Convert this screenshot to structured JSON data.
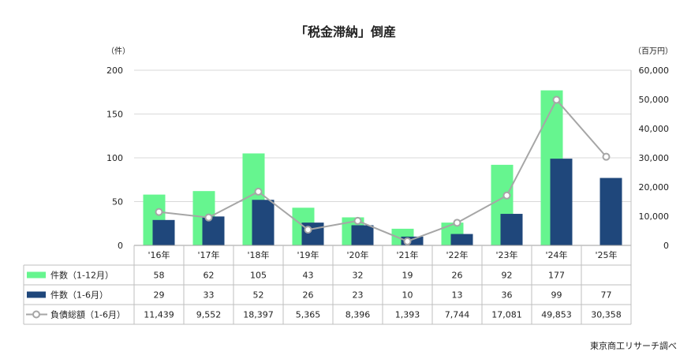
{
  "source": "東京商工リサーチ調べ",
  "colors": {
    "full_year_bar": "#66f58f",
    "half_year_bar": "#1f477b",
    "debt_line": "#a6a6a6",
    "grid": "#d9d9d9",
    "table_border": "#bfbfbf"
  },
  "chart_data": {
    "type": "bar",
    "title": "「税金滞納」倒産",
    "categories": [
      "'16年",
      "'17年",
      "'18年",
      "'19年",
      "'20年",
      "'21年",
      "'22年",
      "'23年",
      "'24年",
      "'25年"
    ],
    "y_left": {
      "unit": "（件）",
      "ylim": [
        0,
        200
      ],
      "ticks": [
        "0",
        "50",
        "100",
        "150",
        "200"
      ]
    },
    "y_right": {
      "unit": "（百万円）",
      "ylim": [
        0,
        60000
      ],
      "ticks": [
        "0",
        "10,000",
        "20,000",
        "30,000",
        "40,000",
        "50,000",
        "60,000"
      ]
    },
    "grid": true,
    "legend_placement": "table-left",
    "series": [
      {
        "name": "件数（1-12月）",
        "type": "bar",
        "axis": "left",
        "values": [
          58,
          62,
          105,
          43,
          32,
          19,
          26,
          92,
          177,
          null
        ],
        "labels": [
          "58",
          "62",
          "105",
          "43",
          "32",
          "19",
          "26",
          "92",
          "177",
          ""
        ]
      },
      {
        "name": "件数（1-6月）",
        "type": "bar",
        "axis": "left",
        "values": [
          29,
          33,
          52,
          26,
          23,
          10,
          13,
          36,
          99,
          77
        ],
        "labels": [
          "29",
          "33",
          "52",
          "26",
          "23",
          "10",
          "13",
          "36",
          "99",
          "77"
        ]
      },
      {
        "name": "負債総額（1-6月）",
        "type": "line",
        "axis": "right",
        "values": [
          11439,
          9552,
          18397,
          5365,
          8396,
          1393,
          7744,
          17081,
          49853,
          30358
        ],
        "labels": [
          "11,439",
          "9,552",
          "18,397",
          "5,365",
          "8,396",
          "1,393",
          "7,744",
          "17,081",
          "49,853",
          "30,358"
        ]
      }
    ]
  }
}
